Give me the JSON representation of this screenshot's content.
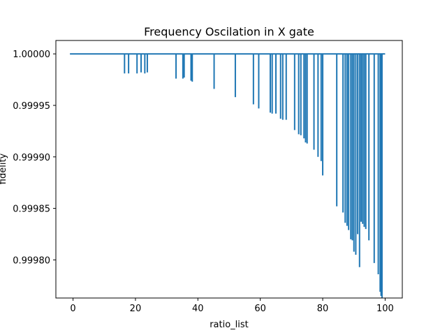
{
  "chart_data": {
    "type": "line",
    "title": "Frequency Oscilation in X gate",
    "xlabel": "ratio_list",
    "ylabel": "fidelity",
    "xlim": [
      -5.5,
      105.5
    ],
    "ylim": [
      0.999763,
      1.000013
    ],
    "xticks": [
      0,
      20,
      40,
      60,
      80,
      100
    ],
    "xtick_labels": [
      "0",
      "20",
      "40",
      "60",
      "80",
      "100"
    ],
    "yticks": [
      0.9998,
      0.99985,
      0.9999,
      0.99995,
      1.0
    ],
    "ytick_labels": [
      "0.99980",
      "0.99985",
      "0.99990",
      "0.99995",
      "1.00000"
    ],
    "grid": false,
    "series": [
      {
        "color": "#1f77b4",
        "baseline": 1.0,
        "x_range": [
          -1,
          100
        ],
        "dips": [
          {
            "x": 16.5,
            "y": 0.999981
          },
          {
            "x": 17.8,
            "y": 0.999981
          },
          {
            "x": 20.5,
            "y": 0.999981
          },
          {
            "x": 21.8,
            "y": 0.999982
          },
          {
            "x": 23.0,
            "y": 0.999981
          },
          {
            "x": 23.8,
            "y": 0.999982
          },
          {
            "x": 33.0,
            "y": 0.999976
          },
          {
            "x": 35.2,
            "y": 0.999976
          },
          {
            "x": 35.6,
            "y": 0.999977
          },
          {
            "x": 37.8,
            "y": 0.999974
          },
          {
            "x": 38.2,
            "y": 0.999973
          },
          {
            "x": 45.2,
            "y": 0.999966
          },
          {
            "x": 52.0,
            "y": 0.999958
          },
          {
            "x": 57.8,
            "y": 0.999951
          },
          {
            "x": 59.5,
            "y": 0.999947
          },
          {
            "x": 63.2,
            "y": 0.999943
          },
          {
            "x": 63.8,
            "y": 0.999942
          },
          {
            "x": 65.0,
            "y": 0.999942
          },
          {
            "x": 66.5,
            "y": 0.999937
          },
          {
            "x": 67.2,
            "y": 0.999936
          },
          {
            "x": 68.3,
            "y": 0.999936
          },
          {
            "x": 71.0,
            "y": 0.999926
          },
          {
            "x": 72.3,
            "y": 0.999922
          },
          {
            "x": 73.0,
            "y": 0.999921
          },
          {
            "x": 74.0,
            "y": 0.999918
          },
          {
            "x": 74.5,
            "y": 0.999914
          },
          {
            "x": 75.0,
            "y": 0.999913
          },
          {
            "x": 77.2,
            "y": 0.999907
          },
          {
            "x": 78.5,
            "y": 0.9999
          },
          {
            "x": 79.5,
            "y": 0.999896
          },
          {
            "x": 80.0,
            "y": 0.999882
          },
          {
            "x": 84.5,
            "y": 0.999852
          },
          {
            "x": 86.5,
            "y": 0.999846
          },
          {
            "x": 87.2,
            "y": 0.999836
          },
          {
            "x": 87.8,
            "y": 0.999833
          },
          {
            "x": 88.3,
            "y": 0.999829
          },
          {
            "x": 89.0,
            "y": 0.99982
          },
          {
            "x": 89.5,
            "y": 0.999819
          },
          {
            "x": 90.0,
            "y": 0.999808
          },
          {
            "x": 90.6,
            "y": 0.999805
          },
          {
            "x": 91.2,
            "y": 0.999825
          },
          {
            "x": 91.8,
            "y": 0.999793
          },
          {
            "x": 92.3,
            "y": 0.999837
          },
          {
            "x": 92.8,
            "y": 0.999835
          },
          {
            "x": 93.3,
            "y": 0.999832
          },
          {
            "x": 93.8,
            "y": 0.99983
          },
          {
            "x": 94.8,
            "y": 0.999819
          },
          {
            "x": 96.5,
            "y": 0.999797
          },
          {
            "x": 97.8,
            "y": 0.999786
          },
          {
            "x": 98.4,
            "y": 0.999769
          },
          {
            "x": 98.7,
            "y": 0.999765
          },
          {
            "x": 99.0,
            "y": 0.999763
          }
        ]
      }
    ]
  }
}
